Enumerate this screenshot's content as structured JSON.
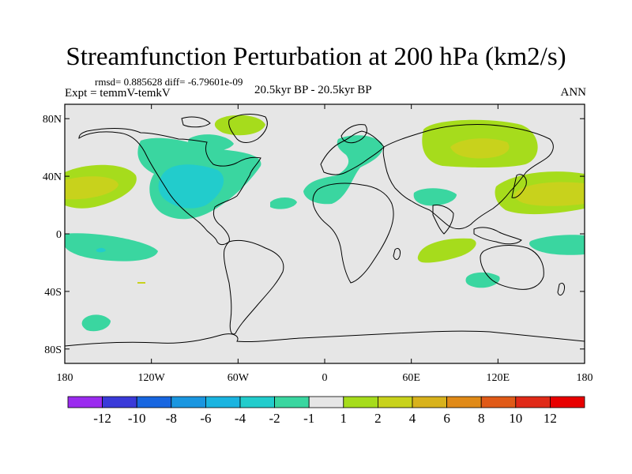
{
  "title": "Streamfunction Perturbation at 200 hPa (km2/s)",
  "stats": "rmsd= 0.885628 diff= -6.79601e-09",
  "experiment": "Expt = temmV-temkV",
  "period": "20.5kyr BP - 20.5kyr BP",
  "season": "ANN",
  "chart_data": {
    "type": "contour-map",
    "title": "Streamfunction Perturbation at 200 hPa (km2/s)",
    "units": "km2/s",
    "projection": "cylindrical-equidistant",
    "lon_range": [
      -180,
      180
    ],
    "lat_range": [
      -90,
      90
    ],
    "x_ticks": [
      {
        "value": -180,
        "label": "180"
      },
      {
        "value": -120,
        "label": "120W"
      },
      {
        "value": -60,
        "label": "60W"
      },
      {
        "value": 0,
        "label": "0"
      },
      {
        "value": 60,
        "label": "60E"
      },
      {
        "value": 120,
        "label": "120E"
      },
      {
        "value": 180,
        "label": "180"
      }
    ],
    "y_ticks": [
      {
        "value": 80,
        "label": "80N"
      },
      {
        "value": 40,
        "label": "40N"
      },
      {
        "value": 0,
        "label": "0"
      },
      {
        "value": -40,
        "label": "40S"
      },
      {
        "value": -80,
        "label": "80S"
      }
    ],
    "contour_levels": [
      -12,
      -10,
      -8,
      -6,
      -4,
      -2,
      -1,
      1,
      2,
      4,
      6,
      8,
      10,
      12
    ],
    "colorbar": {
      "colors": [
        "#9b2bef",
        "#3a3ad9",
        "#1866e0",
        "#1a96e0",
        "#1ab4e0",
        "#22cccc",
        "#3ad6a0",
        "#e6e6e6",
        "#a6dc1c",
        "#c8d21c",
        "#d8b21c",
        "#e08a18",
        "#e05a18",
        "#e02a18",
        "#e80000"
      ],
      "labels": [
        "-12",
        "-10",
        "-8",
        "-6",
        "-4",
        "-2",
        "-1",
        "1",
        "2",
        "4",
        "6",
        "8",
        "10",
        "12"
      ]
    },
    "anomaly_regions": [
      {
        "name": "north-atlantic-america",
        "level": "-2 to -1",
        "lon": -100,
        "lat": 35
      },
      {
        "name": "central-north-america-core",
        "level": "-4 to -2",
        "lon": -100,
        "lat": 35
      },
      {
        "name": "hudson-bay-greenland",
        "level": "-2 to -1",
        "lon": -45,
        "lat": 70
      },
      {
        "name": "baffin-bay",
        "level": "1 to 2",
        "lon": -70,
        "lat": 78
      },
      {
        "name": "mid-atlantic",
        "level": "-2 to -1",
        "lon": -30,
        "lat": 23
      },
      {
        "name": "north-pacific-east",
        "level": "1 to 2",
        "lon": -160,
        "lat": 33
      },
      {
        "name": "north-pacific-east-core",
        "level": "2 to 4",
        "lon": -160,
        "lat": 33
      },
      {
        "name": "tropical-pacific-east",
        "level": "-2 to -1",
        "lon": -155,
        "lat": -5
      },
      {
        "name": "south-pacific",
        "level": "-2 to -1",
        "lon": -165,
        "lat": -62
      },
      {
        "name": "europe-north-africa",
        "level": "-2 to -1",
        "lon": 10,
        "lat": 45
      },
      {
        "name": "arabia",
        "level": "-2 to -1",
        "lon": 55,
        "lat": 25
      },
      {
        "name": "siberia",
        "level": "1 to 2",
        "lon": 95,
        "lat": 60
      },
      {
        "name": "siberia-core",
        "level": "2 to 4",
        "lon": 95,
        "lat": 60
      },
      {
        "name": "north-pacific-west",
        "level": "1 to 2",
        "lon": 155,
        "lat": 30
      },
      {
        "name": "north-pacific-west-core",
        "level": "2 to 4",
        "lon": 155,
        "lat": 30
      },
      {
        "name": "indian-ocean",
        "level": "1 to 2",
        "lon": 75,
        "lat": -10
      },
      {
        "name": "australia-south",
        "level": "-2 to -1",
        "lon": 105,
        "lat": -32
      },
      {
        "name": "maritime-pacific",
        "level": "-2 to -1",
        "lon": 165,
        "lat": -8
      }
    ]
  }
}
